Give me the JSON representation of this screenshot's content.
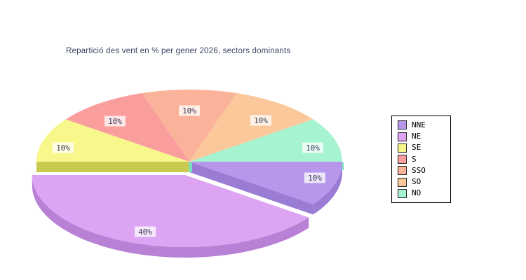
{
  "chart_data": {
    "type": "pie",
    "style": "3d-exploded",
    "title": "Repartició des vent en % per gener 2026, sectors dominants",
    "start_angle_deg": 0,
    "direction": "clockwise",
    "legend_position": "right",
    "grid": false,
    "series": [
      {
        "label": "NNE",
        "value": 10,
        "display": "10%",
        "color": "#B797EC",
        "side_color": "#9A7CD4",
        "exploded": false
      },
      {
        "label": "NE",
        "value": 40,
        "display": "40%",
        "color": "#DCA4F2",
        "side_color": "#B981D6",
        "exploded": true
      },
      {
        "label": "SE",
        "value": 10,
        "display": "10%",
        "color": "#F7F78C",
        "side_color": "#C8C94F",
        "exploded": false
      },
      {
        "label": "S",
        "value": 10,
        "display": "10%",
        "color": "#FA9D9D",
        "side_color": "#E07F7F",
        "exploded": false
      },
      {
        "label": "SSO",
        "value": 10,
        "display": "10%",
        "color": "#FBB29A",
        "side_color": "#DE9378",
        "exploded": false
      },
      {
        "label": "SO",
        "value": 10,
        "display": "10%",
        "color": "#FBC89C",
        "side_color": "#DFA87A",
        "exploded": false
      },
      {
        "label": "NO",
        "value": 10,
        "display": "10%",
        "color": "#A5F3D1",
        "side_color": "#7DDCB9",
        "exploded": false
      }
    ],
    "colors": {
      "title_text": "#3A4563",
      "label_text": "#3C3C5A",
      "label_bg": "rgba(255,255,255,0.75)",
      "legend_border": "#000000",
      "legend_text": "#000000",
      "background": "#FFFFFF"
    }
  }
}
